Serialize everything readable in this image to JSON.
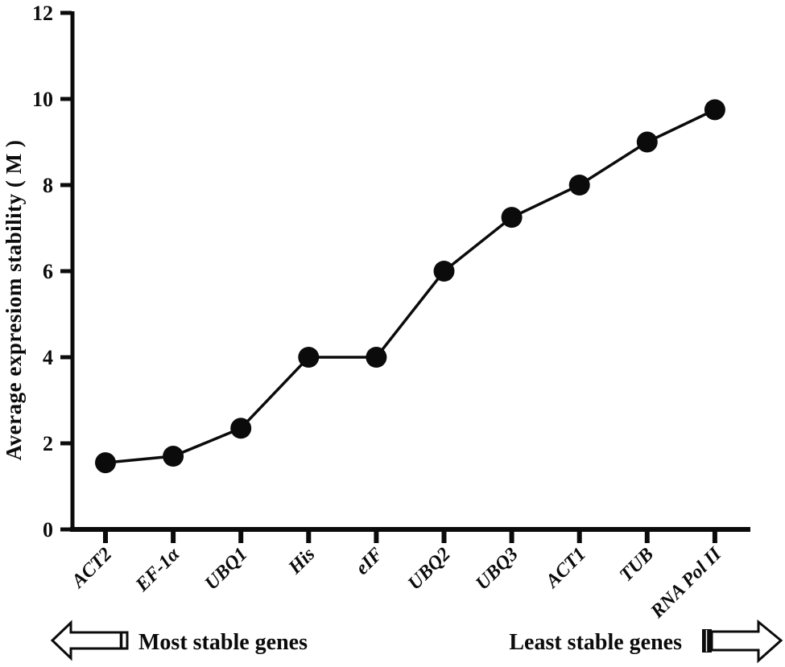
{
  "chart_data": {
    "type": "line",
    "title": "",
    "categories": [
      "ACT2",
      "EF-1α",
      "UBQ1",
      "His",
      "eIF",
      "UBQ2",
      "UBQ3",
      "ACT1",
      "TUB",
      "RNA Pol II"
    ],
    "values": [
      1.55,
      1.7,
      2.35,
      4.0,
      4.0,
      6.0,
      7.25,
      8.0,
      9.0,
      9.75
    ],
    "xlabel": "",
    "ylabel": "Average expresiom stability ( M )",
    "ylim": [
      0,
      12
    ],
    "yticks": [
      0,
      2,
      4,
      6,
      8,
      10,
      12
    ],
    "grid": false,
    "legend": "none",
    "marker": "filled-circle",
    "colors": {
      "line": "#0b0b0b",
      "marker": "#0b0b0b",
      "axis": "#0b0b0b",
      "text": "#0b0b0b",
      "background": "#ffffff"
    }
  },
  "footer": {
    "left_arrow_icon": "arrow-left",
    "left_arrow_label": "Most stable genes",
    "right_arrow_label": "Least stable genes",
    "right_arrow_icon": "arrow-right"
  }
}
